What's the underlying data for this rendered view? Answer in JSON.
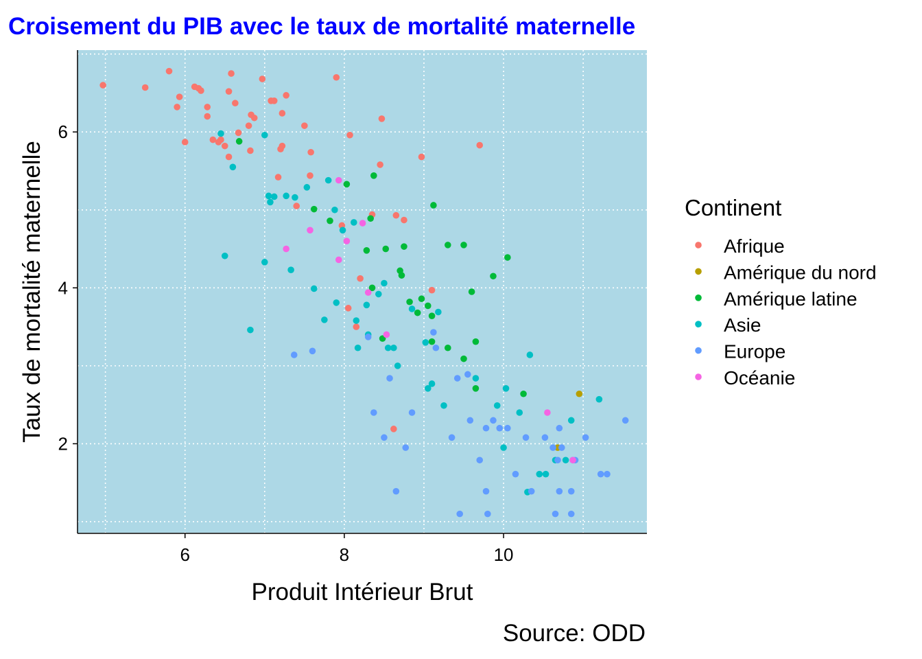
{
  "chart_data": {
    "type": "scatter",
    "title": "Croisement du PIB avec le taux de mortalité maternelle",
    "title_color": "#0000ff",
    "xlabel": "Produit Intérieur Brut",
    "ylabel": "Taux de mortalité maternelle",
    "caption": "Source: ODD",
    "xlim": [
      4.65,
      11.8
    ],
    "ylim": [
      0.85,
      7.05
    ],
    "xticks": [
      6,
      8,
      10
    ],
    "yticks": [
      2,
      4,
      6
    ],
    "grid": true,
    "panel_color": "#add8e6",
    "legend_position": "right",
    "legend_title": "Continent",
    "series": [
      {
        "name": "Afrique",
        "color": "#f8766d",
        "points": [
          [
            4.97,
            6.6
          ],
          [
            5.5,
            6.57
          ],
          [
            5.8,
            6.78
          ],
          [
            5.93,
            6.45
          ],
          [
            5.9,
            6.32
          ],
          [
            6.0,
            5.87
          ],
          [
            6.12,
            6.58
          ],
          [
            6.17,
            6.56
          ],
          [
            6.2,
            6.53
          ],
          [
            6.28,
            6.32
          ],
          [
            6.28,
            6.2
          ],
          [
            6.35,
            5.9
          ],
          [
            6.42,
            5.87
          ],
          [
            6.45,
            5.9
          ],
          [
            6.5,
            5.82
          ],
          [
            6.55,
            6.52
          ],
          [
            6.58,
            6.75
          ],
          [
            6.55,
            5.68
          ],
          [
            6.63,
            6.37
          ],
          [
            6.67,
            5.99
          ],
          [
            6.8,
            6.08
          ],
          [
            6.82,
            5.76
          ],
          [
            6.83,
            6.22
          ],
          [
            6.87,
            6.18
          ],
          [
            6.97,
            6.68
          ],
          [
            7.08,
            6.4
          ],
          [
            7.12,
            6.4
          ],
          [
            7.17,
            5.42
          ],
          [
            7.2,
            5.78
          ],
          [
            7.22,
            5.82
          ],
          [
            7.22,
            6.24
          ],
          [
            7.27,
            6.47
          ],
          [
            7.4,
            5.05
          ],
          [
            7.5,
            6.08
          ],
          [
            7.57,
            5.44
          ],
          [
            7.58,
            5.74
          ],
          [
            7.9,
            6.7
          ],
          [
            7.97,
            4.8
          ],
          [
            8.05,
            3.74
          ],
          [
            8.07,
            5.96
          ],
          [
            8.15,
            3.5
          ],
          [
            8.2,
            4.12
          ],
          [
            8.35,
            4.94
          ],
          [
            8.45,
            5.58
          ],
          [
            8.47,
            6.17
          ],
          [
            8.65,
            4.93
          ],
          [
            8.75,
            4.87
          ],
          [
            8.97,
            5.68
          ],
          [
            9.1,
            3.97
          ],
          [
            9.7,
            5.83
          ],
          [
            8.62,
            2.19
          ]
        ]
      },
      {
        "name": "Amérique du nord",
        "color": "#b79f00",
        "points": [
          [
            10.95,
            2.64
          ],
          [
            10.68,
            1.95
          ]
        ]
      },
      {
        "name": "Amérique latine",
        "color": "#00ba38",
        "points": [
          [
            6.68,
            5.88
          ],
          [
            7.62,
            5.01
          ],
          [
            7.82,
            4.86
          ],
          [
            8.03,
            5.33
          ],
          [
            8.28,
            4.48
          ],
          [
            8.33,
            4.89
          ],
          [
            8.37,
            5.44
          ],
          [
            8.48,
            3.35
          ],
          [
            8.52,
            4.5
          ],
          [
            8.75,
            4.53
          ],
          [
            8.7,
            4.22
          ],
          [
            8.72,
            4.16
          ],
          [
            8.82,
            3.82
          ],
          [
            8.92,
            3.68
          ],
          [
            8.97,
            3.86
          ],
          [
            9.05,
            3.77
          ],
          [
            9.1,
            3.64
          ],
          [
            9.1,
            3.31
          ],
          [
            9.12,
            5.06
          ],
          [
            9.3,
            3.23
          ],
          [
            9.3,
            4.55
          ],
          [
            9.5,
            4.55
          ],
          [
            9.5,
            3.09
          ],
          [
            9.6,
            3.95
          ],
          [
            9.65,
            3.31
          ],
          [
            9.65,
            2.71
          ],
          [
            9.87,
            4.15
          ],
          [
            10.05,
            4.39
          ],
          [
            10.25,
            2.64
          ],
          [
            8.35,
            4.0
          ]
        ]
      },
      {
        "name": "Asie",
        "color": "#00bfc4",
        "points": [
          [
            6.45,
            5.98
          ],
          [
            6.5,
            4.41
          ],
          [
            6.6,
            5.55
          ],
          [
            6.82,
            3.46
          ],
          [
            7.0,
            5.96
          ],
          [
            7.0,
            4.33
          ],
          [
            7.05,
            5.18
          ],
          [
            7.07,
            5.1
          ],
          [
            7.12,
            5.17
          ],
          [
            7.27,
            5.18
          ],
          [
            7.33,
            4.23
          ],
          [
            7.38,
            5.16
          ],
          [
            7.53,
            5.29
          ],
          [
            7.62,
            3.99
          ],
          [
            7.75,
            3.59
          ],
          [
            7.8,
            5.38
          ],
          [
            7.88,
            5.0
          ],
          [
            7.9,
            3.81
          ],
          [
            7.98,
            4.74
          ],
          [
            8.12,
            4.84
          ],
          [
            8.15,
            3.58
          ],
          [
            8.17,
            3.23
          ],
          [
            8.28,
            3.78
          ],
          [
            8.3,
            3.4
          ],
          [
            8.43,
            3.92
          ],
          [
            8.5,
            4.06
          ],
          [
            8.55,
            3.23
          ],
          [
            8.62,
            3.23
          ],
          [
            8.67,
            3.0
          ],
          [
            8.85,
            3.73
          ],
          [
            9.02,
            3.3
          ],
          [
            9.05,
            2.71
          ],
          [
            9.1,
            2.77
          ],
          [
            9.18,
            3.69
          ],
          [
            9.25,
            2.49
          ],
          [
            9.65,
            2.84
          ],
          [
            9.92,
            2.49
          ],
          [
            10.0,
            1.95
          ],
          [
            10.03,
            2.71
          ],
          [
            10.2,
            2.4
          ],
          [
            10.3,
            1.38
          ],
          [
            10.33,
            3.14
          ],
          [
            10.45,
            1.61
          ],
          [
            10.53,
            1.61
          ],
          [
            10.65,
            1.79
          ],
          [
            10.85,
            2.3
          ],
          [
            11.2,
            2.57
          ],
          [
            10.78,
            1.79
          ]
        ]
      },
      {
        "name": "Europe",
        "color": "#619cff",
        "points": [
          [
            7.37,
            3.14
          ],
          [
            7.6,
            3.19
          ],
          [
            8.3,
            3.37
          ],
          [
            8.37,
            2.4
          ],
          [
            8.5,
            2.08
          ],
          [
            8.57,
            2.84
          ],
          [
            8.65,
            1.39
          ],
          [
            8.77,
            1.95
          ],
          [
            8.85,
            2.4
          ],
          [
            9.12,
            3.43
          ],
          [
            9.15,
            3.23
          ],
          [
            9.35,
            2.08
          ],
          [
            9.42,
            2.84
          ],
          [
            9.45,
            1.1
          ],
          [
            9.55,
            2.89
          ],
          [
            9.58,
            2.3
          ],
          [
            9.7,
            1.79
          ],
          [
            9.78,
            2.2
          ],
          [
            9.78,
            1.39
          ],
          [
            9.8,
            1.1
          ],
          [
            9.87,
            2.3
          ],
          [
            9.95,
            2.2
          ],
          [
            10.05,
            2.2
          ],
          [
            10.15,
            1.61
          ],
          [
            10.28,
            2.08
          ],
          [
            10.35,
            1.39
          ],
          [
            10.52,
            2.08
          ],
          [
            10.62,
            1.95
          ],
          [
            10.65,
            1.1
          ],
          [
            10.68,
            1.79
          ],
          [
            10.7,
            1.39
          ],
          [
            10.7,
            2.2
          ],
          [
            10.73,
            1.95
          ],
          [
            10.85,
            1.1
          ],
          [
            10.85,
            1.39
          ],
          [
            10.87,
            1.79
          ],
          [
            10.9,
            1.79
          ],
          [
            11.03,
            2.08
          ],
          [
            11.22,
            1.61
          ],
          [
            11.3,
            1.61
          ],
          [
            11.53,
            2.3
          ]
        ]
      },
      {
        "name": "Océanie",
        "color": "#f564e3",
        "points": [
          [
            7.27,
            4.5
          ],
          [
            7.57,
            4.74
          ],
          [
            7.93,
            4.36
          ],
          [
            7.93,
            5.38
          ],
          [
            8.03,
            4.6
          ],
          [
            8.23,
            4.83
          ],
          [
            8.3,
            3.94
          ],
          [
            8.53,
            3.4
          ],
          [
            10.55,
            2.4
          ],
          [
            10.87,
            1.79
          ]
        ]
      }
    ]
  }
}
